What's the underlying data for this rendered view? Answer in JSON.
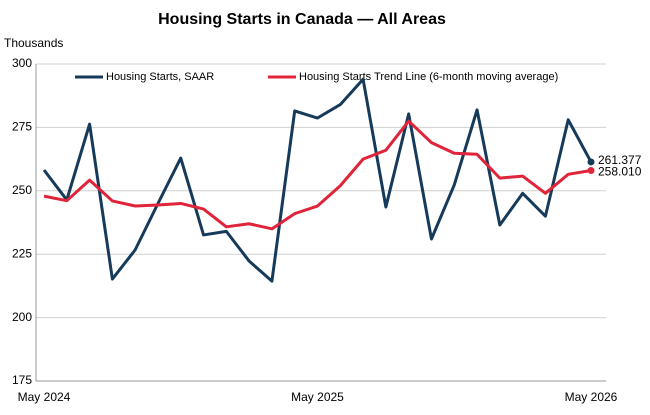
{
  "chart_data": {
    "type": "line",
    "title": "Housing Starts in Canada — All Areas",
    "y_label": "Thousands",
    "categories": [
      "May 2024",
      null,
      null,
      null,
      null,
      null,
      null,
      null,
      null,
      null,
      null,
      null,
      "May 2025",
      null,
      null,
      null,
      null,
      null,
      null,
      null,
      null,
      null,
      null,
      null,
      "May 2026"
    ],
    "series": [
      {
        "name": "Housing Starts, SAAR",
        "color": "#163a5a",
        "values": [
          258.2,
          246.4,
          276.3,
          215.2,
          226.7,
          245,
          262.9,
          232.6,
          234,
          222.3,
          214.4,
          281.5,
          278.7,
          284,
          294,
          243.6,
          280.3,
          231,
          252.3,
          281.9,
          236.5,
          249,
          240,
          278,
          261.377
        ]
      },
      {
        "name": "Housing Starts Trend Line (6-month moving average)",
        "color": "#e0243a",
        "values": [
          247.9,
          246.1,
          254.2,
          246,
          244,
          244.4,
          245,
          242.8,
          235.8,
          237,
          235,
          241,
          244,
          252,
          262.5,
          266,
          277.5,
          269,
          264.8,
          264.4,
          255,
          255.8,
          249,
          256.5,
          258.01
        ],
        "value_labels": [
          null,
          null,
          null,
          null,
          null,
          null,
          null,
          null,
          null,
          null,
          null,
          null,
          null,
          null,
          null,
          null,
          null,
          null,
          null,
          null,
          null,
          null,
          null,
          null,
          "258.010"
        ]
      }
    ],
    "ylim": [
      175,
      300
    ],
    "yticks": [
      175,
      200,
      225,
      250,
      275,
      300
    ],
    "grid": true,
    "legend": "top"
  }
}
